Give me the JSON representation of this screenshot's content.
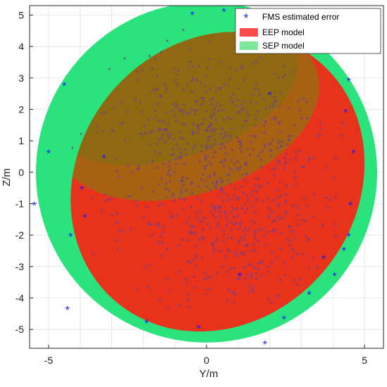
{
  "chart_data": {
    "type": "scatter",
    "title": "",
    "xlabel": "Y/m",
    "ylabel": "Z/m",
    "xlim": [
      -5.6,
      5.6
    ],
    "ylim": [
      -5.6,
      5.3
    ],
    "xticks": [
      -5,
      0,
      5
    ],
    "yticks": [
      -5,
      -4,
      -3,
      -2,
      -1,
      0,
      1,
      2,
      3,
      4,
      5
    ],
    "xtick_labels": [
      "-5",
      "0",
      "5"
    ],
    "ytick_labels": [
      "-5",
      "-4",
      "-3",
      "-2",
      "-1",
      "0",
      "1",
      "2",
      "3",
      "4",
      "5"
    ],
    "grid": true,
    "legend_position": "top-right",
    "legend": [
      {
        "label": "FMS estimated error",
        "marker": "asterisk",
        "color": "#1a1aff"
      },
      {
        "label": "EEP model",
        "marker": "patch",
        "color": "#ff4a4a"
      },
      {
        "label": "SEP model",
        "marker": "patch",
        "color": "#7ee89a"
      }
    ],
    "colors": {
      "sep_fill": "#2ae37d",
      "eep_fill": "#e8331c",
      "fms_point": "#1a1aff",
      "dense_point": "#6b3f92"
    },
    "sep_model": {
      "center": [
        0,
        0
      ],
      "radius": 5.4
    },
    "eep_model": {
      "center": [
        0.35,
        -0.3
      ],
      "semi_axes": [
        4.4,
        5.0
      ],
      "rotation_deg": -40
    },
    "core_cluster": {
      "center": [
        0.3,
        0.6
      ],
      "semi_axes": [
        3.3,
        1.8
      ],
      "rotation_deg": 22
    },
    "outlier_points": [
      [
        -5.45,
        -1.05
      ],
      [
        -4.4,
        -4.38
      ],
      [
        -4.5,
        2.75
      ],
      [
        -4.3,
        -2.05
      ],
      [
        -3.95,
        -0.55
      ],
      [
        -3.25,
        0.45
      ],
      [
        -0.45,
        5.0
      ],
      [
        0.55,
        5.1
      ],
      [
        1.15,
        4.12
      ],
      [
        2.0,
        2.45
      ],
      [
        4.5,
        2.9
      ],
      [
        4.4,
        1.9
      ],
      [
        4.65,
        0.6
      ],
      [
        4.55,
        -1.05
      ],
      [
        4.5,
        -2.05
      ],
      [
        4.35,
        -2.5
      ],
      [
        3.7,
        -2.75
      ],
      [
        4.05,
        -3.3
      ],
      [
        3.25,
        -3.9
      ],
      [
        2.45,
        -4.68
      ],
      [
        1.85,
        -5.48
      ],
      [
        -0.25,
        -4.97
      ],
      [
        1.05,
        -3.3
      ],
      [
        -3.85,
        -1.45
      ],
      [
        -5.0,
        0.6
      ],
      [
        -1.9,
        -4.8
      ]
    ]
  }
}
